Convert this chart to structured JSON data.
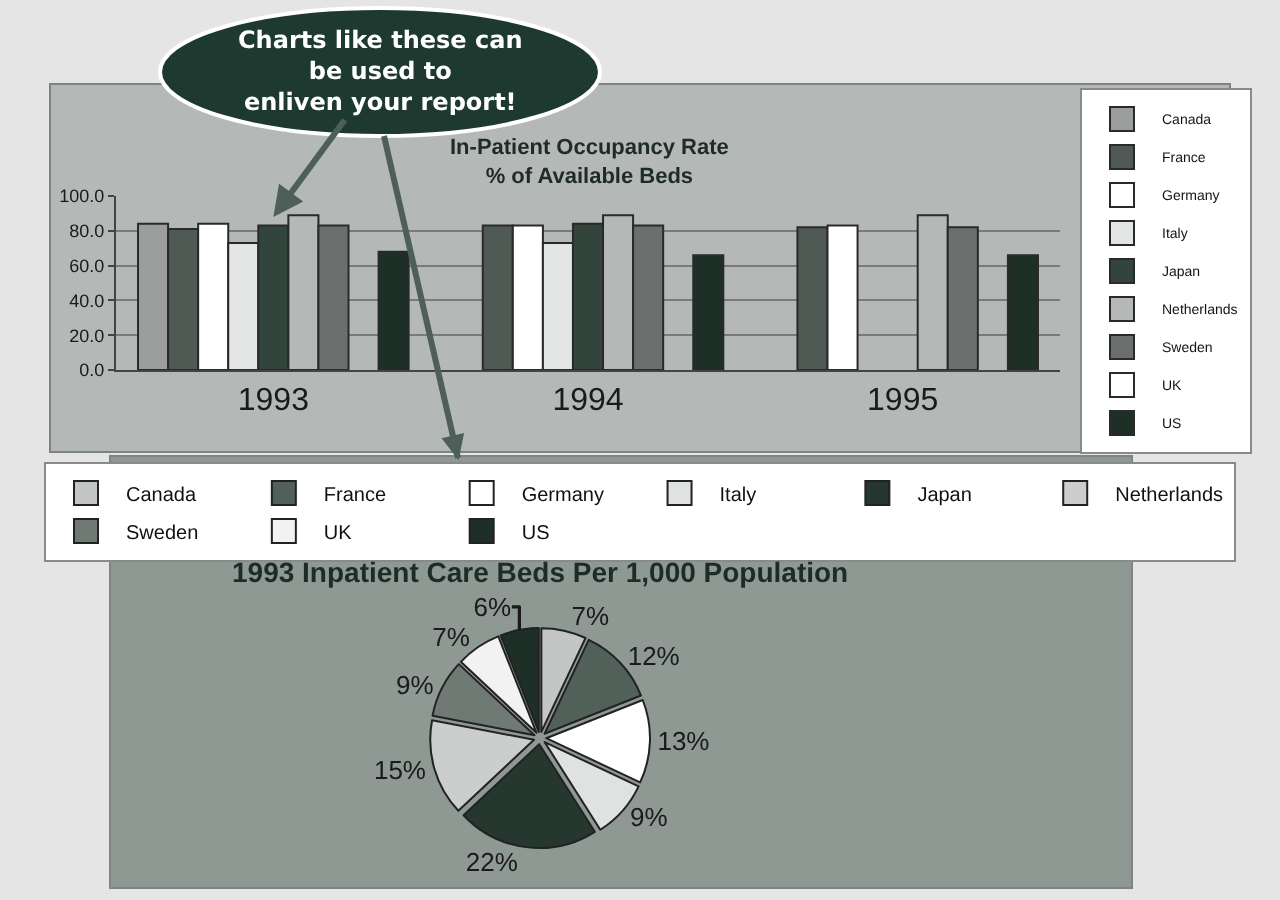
{
  "chart_data": [
    {
      "type": "bar",
      "title": "In-Patient Occupancy Rate\n% of Available Beds",
      "categories": [
        "1993",
        "1994",
        "1995"
      ],
      "series": [
        {
          "name": "Canada",
          "color": "#9c9e9d",
          "values": [
            84,
            null,
            null
          ]
        },
        {
          "name": "France",
          "color": "#4f5a55",
          "values": [
            81,
            83,
            82
          ]
        },
        {
          "name": "Germany",
          "color": "#ffffff",
          "values": [
            84,
            83,
            83
          ]
        },
        {
          "name": "Italy",
          "color": "#e4e6e5",
          "values": [
            73,
            73,
            null
          ]
        },
        {
          "name": "Japan",
          "color": "#33443c",
          "values": [
            83,
            84,
            null
          ]
        },
        {
          "name": "Netherlands",
          "color": "#b5b8b7",
          "values": [
            89,
            89,
            89
          ]
        },
        {
          "name": "Sweden",
          "color": "#6b706e",
          "values": [
            83,
            83,
            82
          ]
        },
        {
          "name": "UK",
          "color": "#ffffff",
          "values": [
            null,
            null,
            null
          ]
        },
        {
          "name": "US",
          "color": "#1d2f27",
          "values": [
            68,
            66,
            66
          ]
        }
      ],
      "ylim": [
        0,
        100
      ],
      "yticks": [
        {
          "value": 0,
          "label": "0.0"
        },
        {
          "value": 20,
          "label": "20.0"
        },
        {
          "value": 40,
          "label": "40.0"
        },
        {
          "value": 60,
          "label": "60.0"
        },
        {
          "value": 80,
          "label": "80.0"
        },
        {
          "value": 100,
          "label": "100.0"
        }
      ],
      "grid": "y",
      "legend": "right",
      "annotations": [
        {
          "text": "Charts like these can\nbe used to\nenliven your report!",
          "x": "1993",
          "y": 88
        }
      ]
    },
    {
      "type": "pie",
      "title": "1993 Inpatient Care Beds Per 1,000 Population",
      "categories": [
        "Canada",
        "France",
        "Germany",
        "Italy",
        "Japan",
        "Netherlands",
        "Sweden",
        "UK",
        "US"
      ],
      "values": [
        7,
        12,
        13,
        9,
        22,
        15,
        9,
        7,
        6
      ],
      "colors": [
        "#c3c6c5",
        "#52605a",
        "#ffffff",
        "#dfe2e1",
        "#26372f",
        "#cbcecd",
        "#6f7a75",
        "#f2f2f2",
        "#1d2f27"
      ],
      "value_labels": [
        "7%",
        "12%",
        "13%",
        "9%",
        "22%",
        "15%",
        "9%",
        "7%",
        "6%"
      ],
      "legend": "top"
    }
  ]
}
